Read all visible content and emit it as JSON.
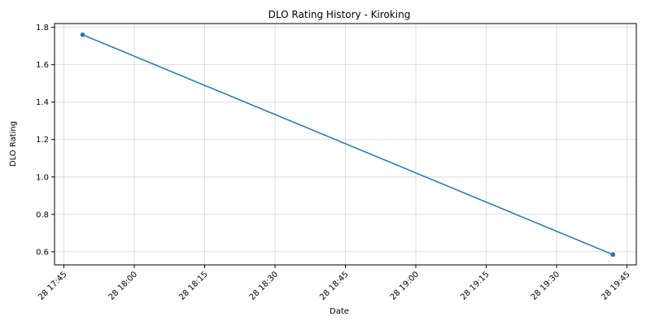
{
  "chart_data": {
    "type": "line",
    "title": "DLO Rating History - Kiroking",
    "xlabel": "Date",
    "ylabel": "DLO Rating",
    "series": [
      {
        "color": "#1f77b4",
        "marker": "circle",
        "points": [
          {
            "x": "28 17:49",
            "y": 1.76
          },
          {
            "x": "28 19:42",
            "y": 0.585
          }
        ]
      }
    ],
    "x_ticks": [
      "28 17:45",
      "28 18:00",
      "28 18:15",
      "28 18:30",
      "28 18:45",
      "28 19:00",
      "28 19:15",
      "28 19:30",
      "28 19:45"
    ],
    "y_ticks": [
      "0.6",
      "0.8",
      "1.0",
      "1.2",
      "1.4",
      "1.6",
      "1.8"
    ],
    "xlim": [
      "28 17:43",
      "28 19:47"
    ],
    "ylim": [
      0.53,
      1.82
    ],
    "grid": true,
    "legend": "none"
  }
}
